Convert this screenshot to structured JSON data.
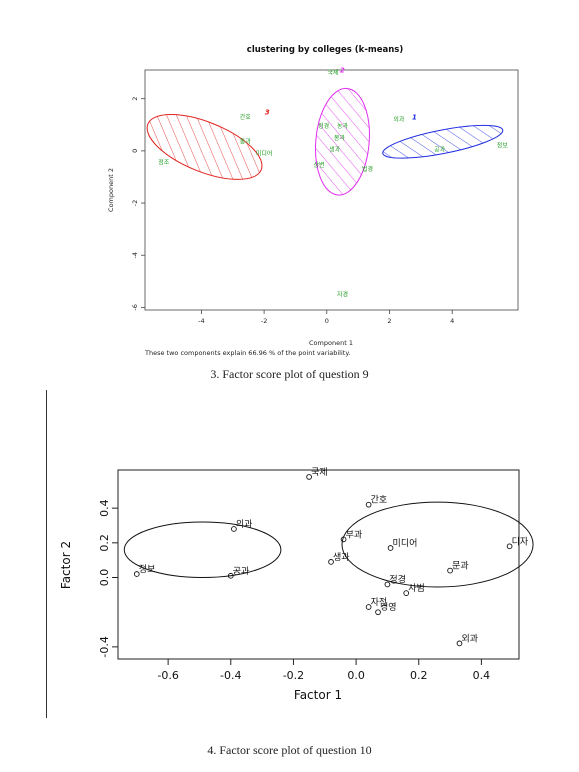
{
  "chart_data": [
    {
      "type": "scatter",
      "title": "clustering by colleges (k-means)",
      "xlabel": "Component 1",
      "ylabel": "Component 2",
      "note": "These two components explain 66.96 % of the point variability.",
      "xlim": [
        -5.8,
        6.1
      ],
      "ylim": [
        -6.1,
        3.1
      ],
      "xticks": [
        -4,
        -2,
        0,
        2,
        4
      ],
      "yticks": [
        2,
        0,
        -2,
        -4,
        -6
      ],
      "clusters": [
        {
          "id": "1",
          "color": "#1f2de0",
          "ellipse": {
            "cx": 3.7,
            "cy": 0.35,
            "rx": 1.95,
            "ry": 0.45,
            "angle_deg": -11
          }
        },
        {
          "id": "2",
          "color": "#e02cf0",
          "ellipse": {
            "cx": 0.5,
            "cy": 0.35,
            "rx": 0.85,
            "ry": 2.05,
            "angle_deg": 5
          }
        },
        {
          "id": "3",
          "color": "#e0231f",
          "ellipse": {
            "cx": -3.9,
            "cy": 0.15,
            "rx": 1.95,
            "ry": 0.95,
            "angle_deg": 22
          }
        }
      ],
      "cluster_markers": [
        {
          "label": "1",
          "x": 2.4,
          "y": 1.2,
          "color": "#1f2de0"
        },
        {
          "label": "2",
          "x": 0.1,
          "y": 3.0,
          "color": "#e02cf0"
        },
        {
          "label": "3",
          "x": -2.3,
          "y": 1.4,
          "color": "#e0231f"
        }
      ],
      "points": [
        {
          "label": "간호",
          "x": -2.6,
          "y": 1.3
        },
        {
          "label": "통과",
          "x": -2.6,
          "y": 0.35
        },
        {
          "label": "미디어",
          "x": -2.0,
          "y": -0.1
        },
        {
          "label": "정조",
          "x": -5.2,
          "y": -0.45
        },
        {
          "label": "국제",
          "x": 0.2,
          "y": 3.0
        },
        {
          "label": "정경",
          "x": -0.1,
          "y": 0.95
        },
        {
          "label": "농과",
          "x": 0.5,
          "y": 0.95
        },
        {
          "label": "봉과",
          "x": 0.4,
          "y": 0.5
        },
        {
          "label": "생과",
          "x": 0.25,
          "y": 0.05
        },
        {
          "label": "상변",
          "x": -0.25,
          "y": -0.55
        },
        {
          "label": "법경",
          "x": 1.3,
          "y": -0.7
        },
        {
          "label": "의과",
          "x": 2.3,
          "y": 1.2
        },
        {
          "label": "공과",
          "x": 3.6,
          "y": 0.05
        },
        {
          "label": "정보",
          "x": 5.6,
          "y": 0.2
        },
        {
          "label": "자경",
          "x": 0.5,
          "y": -5.5
        }
      ]
    },
    {
      "type": "scatter",
      "xlabel": "Factor 1",
      "ylabel": "Factor 2",
      "xlim": [
        -0.76,
        0.52
      ],
      "ylim": [
        -0.47,
        0.62
      ],
      "xticks": [
        -0.6,
        -0.4,
        -0.2,
        0.0,
        0.2,
        0.4
      ],
      "yticks": [
        0.4,
        0.2,
        0.0,
        -0.4
      ],
      "ellipses": [
        {
          "cx": -0.49,
          "cy": 0.16,
          "rx": 0.25,
          "ry": 0.16
        },
        {
          "cx": 0.26,
          "cy": 0.19,
          "rx": 0.305,
          "ry": 0.245
        }
      ],
      "points": [
        {
          "label": "국제",
          "x": -0.15,
          "y": 0.58
        },
        {
          "label": "간호",
          "x": 0.04,
          "y": 0.42
        },
        {
          "label": "의과",
          "x": -0.39,
          "y": 0.28
        },
        {
          "label": "부과",
          "x": -0.04,
          "y": 0.22
        },
        {
          "label": "미디어",
          "x": 0.11,
          "y": 0.17
        },
        {
          "label": "디자",
          "x": 0.49,
          "y": 0.18
        },
        {
          "label": "생과",
          "x": -0.08,
          "y": 0.09
        },
        {
          "label": "정보",
          "x": -0.7,
          "y": 0.02
        },
        {
          "label": "공과",
          "x": -0.4,
          "y": 0.01
        },
        {
          "label": "문과",
          "x": 0.3,
          "y": 0.04
        },
        {
          "label": "정경",
          "x": 0.1,
          "y": -0.04
        },
        {
          "label": "사범",
          "x": 0.16,
          "y": -0.09
        },
        {
          "label": "자전",
          "x": 0.04,
          "y": -0.17
        },
        {
          "label": "경영",
          "x": 0.07,
          "y": -0.2
        },
        {
          "label": "외과",
          "x": 0.33,
          "y": -0.38
        }
      ]
    }
  ],
  "captions": {
    "top": "3. Factor score plot of question 9",
    "bottom": "4. Factor score plot of question 10"
  },
  "colors": {
    "label_green": "#1a9a1a",
    "axis": "#333333"
  }
}
